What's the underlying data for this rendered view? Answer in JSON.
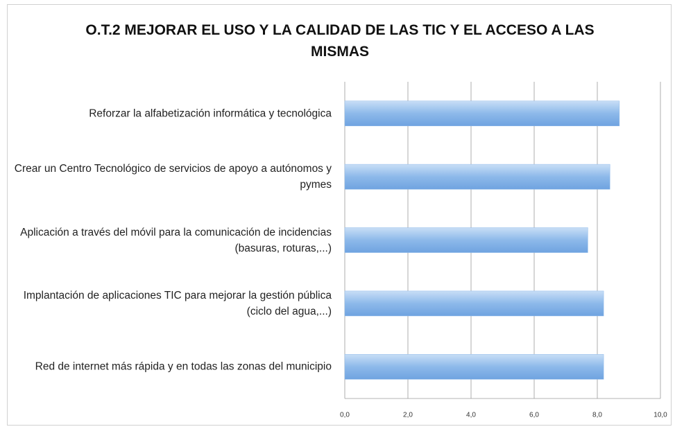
{
  "chart_data": {
    "type": "bar",
    "orientation": "horizontal",
    "title": "O.T.2 MEJORAR EL USO Y LA CALIDAD DE LAS TIC Y EL ACCESO A LAS MISMAS",
    "categories": [
      "Reforzar la alfabetización informática y tecnológica",
      "Crear un Centro Tecnológico de servicios de apoyo a autónomos y pymes",
      "Aplicación a través del móvil para la comunicación de incidencias (basuras, roturas,...)",
      "Implantación de aplicaciones TIC para mejorar la gestión pública (ciclo del agua,...)",
      "Red de internet más rápida y en todas las zonas del municipio"
    ],
    "values": [
      8.7,
      8.4,
      7.7,
      8.2,
      8.2
    ],
    "color": "#8db9ea",
    "xlim": [
      0,
      10
    ],
    "xticks": [
      {
        "value": 0,
        "label": "0,0"
      },
      {
        "value": 2,
        "label": "2,0"
      },
      {
        "value": 4,
        "label": "4,0"
      },
      {
        "value": 6,
        "label": "6,0"
      },
      {
        "value": 8,
        "label": "8,0"
      },
      {
        "value": 10,
        "label": "10,0"
      }
    ],
    "grid": true
  }
}
